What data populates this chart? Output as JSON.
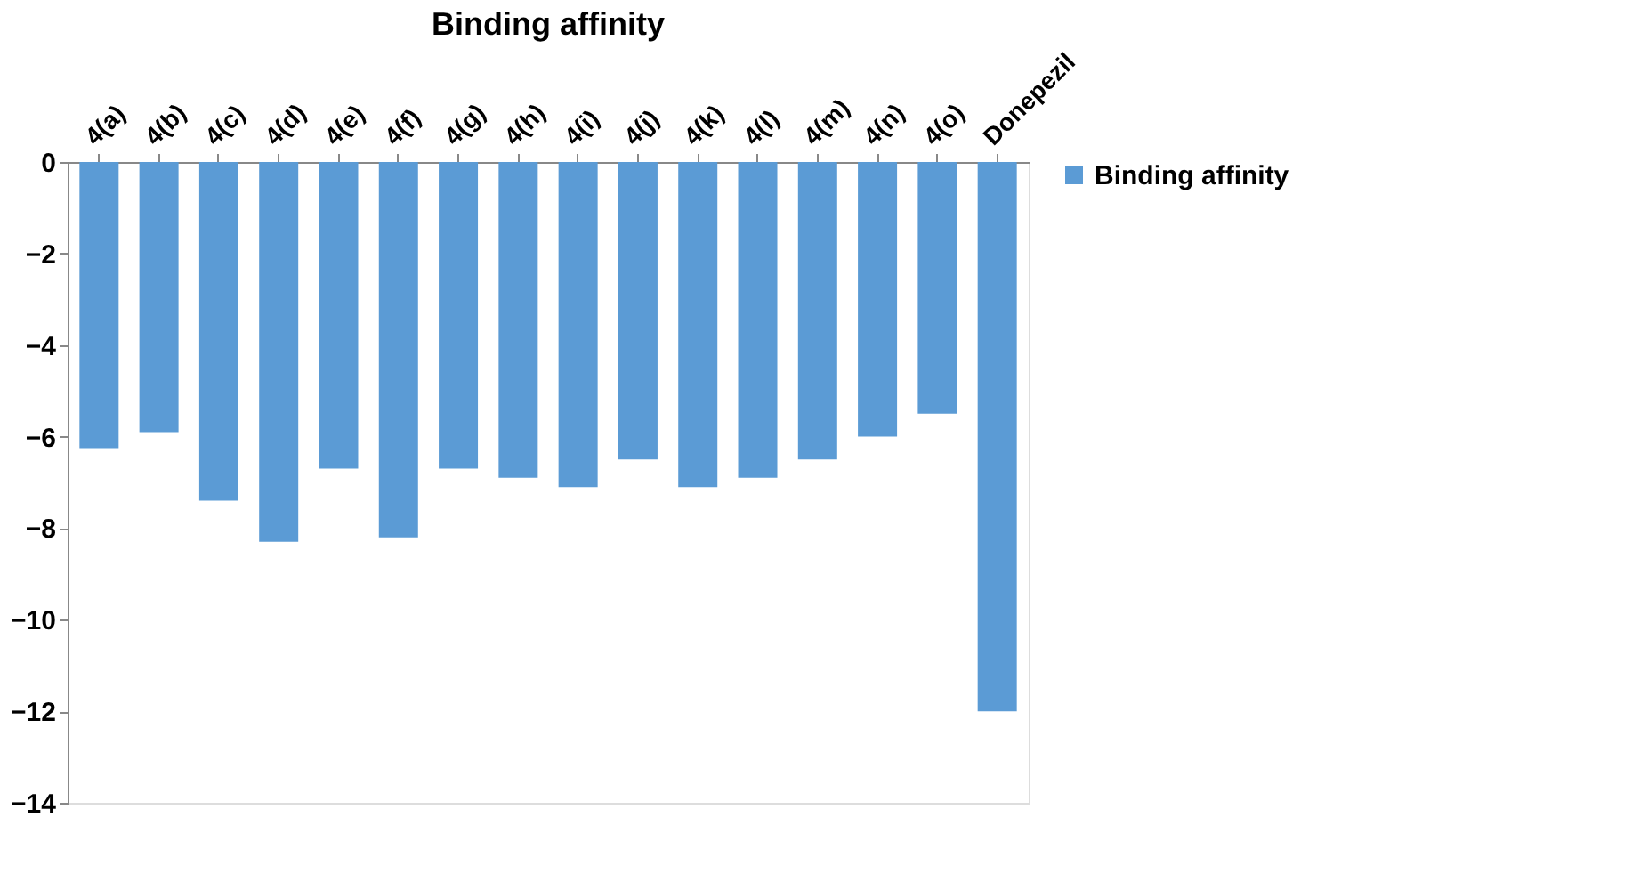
{
  "chart_data": {
    "type": "bar",
    "title": "Binding affinity",
    "categories": [
      "4(a)",
      "4(b)",
      "4(c)",
      "4(d)",
      "4(e)",
      "4(f)",
      "4(g)",
      "4(h)",
      "4(i)",
      "4(j)",
      "4(k)",
      "4(l)",
      "4(m)",
      "4(n)",
      "4(o)",
      "Donepezil"
    ],
    "series": [
      {
        "name": "Binding affinity",
        "color": "#5b9bd5",
        "values": [
          -6.25,
          -5.9,
          -7.4,
          -8.3,
          -6.7,
          -8.2,
          -6.7,
          -6.9,
          -7.1,
          -6.5,
          -7.1,
          -6.9,
          -6.5,
          -6.0,
          -5.5,
          -12.0
        ]
      }
    ],
    "ylim": [
      -14,
      0
    ],
    "yticks": [
      -14,
      -12,
      -10,
      -8,
      -6,
      -4,
      -2,
      0
    ],
    "grid": false,
    "legend": "right"
  }
}
